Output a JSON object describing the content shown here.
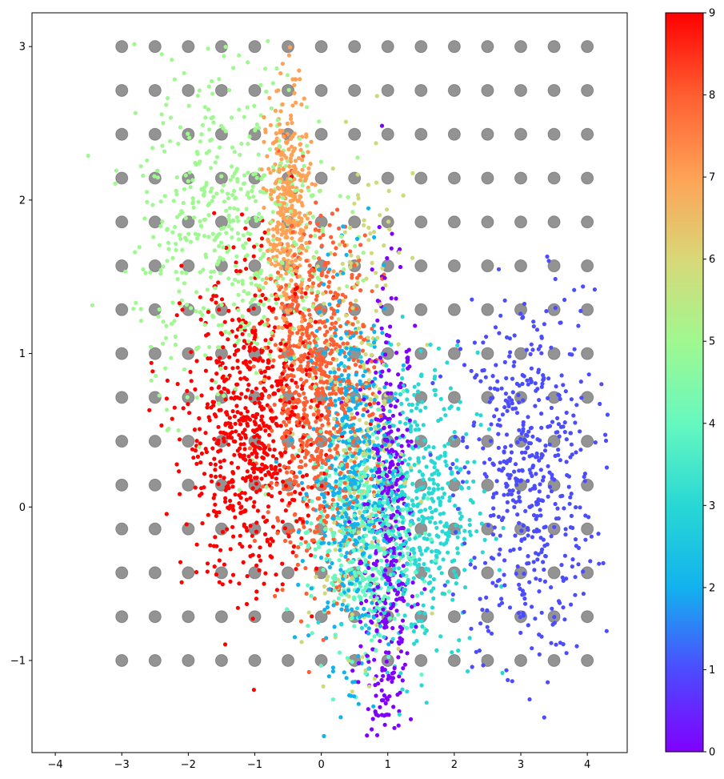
{
  "chart_data": {
    "type": "scatter",
    "title": "",
    "xlabel": "",
    "ylabel": "",
    "xlim": [
      -4.35,
      4.6
    ],
    "ylim": [
      -1.6,
      3.22
    ],
    "x_ticks": [
      -4,
      -3,
      -2,
      -1,
      0,
      1,
      2,
      3,
      4
    ],
    "x_tick_labels": [
      "−4",
      "−3",
      "−2",
      "−1",
      "0",
      "1",
      "2",
      "3",
      "4"
    ],
    "y_ticks": [
      -1,
      0,
      1,
      2,
      3
    ],
    "y_tick_labels": [
      "−1",
      "0",
      "1",
      "2",
      "3"
    ],
    "grid": false,
    "grid_points": {
      "x_start": -3,
      "x_end": 4,
      "x_count": 15,
      "y_start": -1,
      "y_end": 3,
      "y_count": 15,
      "color": "#808080"
    },
    "series": [
      {
        "label": "0",
        "color": "#8000ff",
        "center": [
          1.0,
          -0.3
        ],
        "spread": [
          0.2,
          0.85
        ],
        "count": 450
      },
      {
        "label": "1",
        "color": "#4c4cff",
        "center": [
          3.1,
          0.2
        ],
        "spread": [
          0.5,
          0.6
        ],
        "count": 520
      },
      {
        "label": "2",
        "color": "#12b2ee",
        "center": [
          0.45,
          0.2
        ],
        "spread": [
          0.3,
          0.6
        ],
        "count": 470
      },
      {
        "label": "3",
        "color": "#28d8d4",
        "center": [
          1.45,
          0.0
        ],
        "spread": [
          0.45,
          0.5
        ],
        "count": 500
      },
      {
        "label": "4",
        "color": "#66f8c0",
        "center": [
          0.6,
          -0.2
        ],
        "spread": [
          0.4,
          0.35
        ],
        "count": 430
      },
      {
        "label": "5",
        "color": "#a0f890",
        "center": [
          -1.3,
          1.8
        ],
        "spread": [
          0.75,
          0.55
        ],
        "count": 560
      },
      {
        "label": "6",
        "color": "#cfd97a",
        "center": [
          0.55,
          0.6
        ],
        "spread": [
          0.35,
          0.75
        ],
        "count": 280
      },
      {
        "label": "7",
        "color": "#ffa256",
        "center": [
          -0.5,
          1.9
        ],
        "spread": [
          0.16,
          0.4
        ],
        "count": 400
      },
      {
        "label": "8",
        "color": "#ff5f32",
        "center": [
          -0.05,
          0.75
        ],
        "spread": [
          0.4,
          0.55
        ],
        "count": 760
      },
      {
        "label": "9",
        "color": "#ff0000",
        "center": [
          -1.05,
          0.5
        ],
        "spread": [
          0.5,
          0.5
        ],
        "count": 720
      }
    ],
    "colorbar": {
      "min": 0,
      "max": 9,
      "ticks": [
        "0",
        "1",
        "2",
        "3",
        "4",
        "5",
        "6",
        "7",
        "8",
        "9"
      ],
      "colormap": "rainbow"
    }
  }
}
